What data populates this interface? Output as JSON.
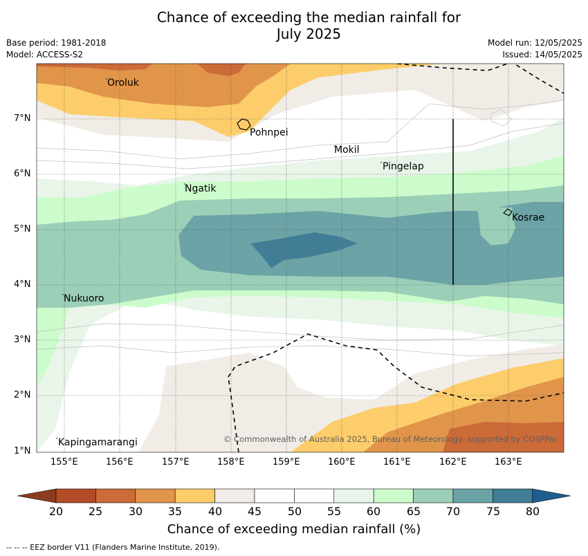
{
  "header": {
    "title_line1": "Chance of exceeding the median rainfall for",
    "title_line2": "July 2025",
    "base_period": "Base period: 1981-2018",
    "model": "Model: ACCESS-S2",
    "model_run": "Model run: 12/05/2025",
    "issued": "Issued: 14/05/2025"
  },
  "map": {
    "lat_labels": [
      "7°N",
      "6°N",
      "5°N",
      "4°N",
      "3°N",
      "2°N",
      "1°N"
    ],
    "lon_labels": [
      "155°E",
      "156°E",
      "157°E",
      "158°E",
      "159°E",
      "160°E",
      "161°E",
      "162°E",
      "163°E"
    ],
    "places": [
      "Oroluk",
      "Pohnpei",
      "Mokil",
      "Pingelap",
      "Ngatik",
      "Kosrae",
      "Nukuoro",
      "Kapingamarangi"
    ],
    "copyright": "© Commonwealth of Australia 2025, Bureau of Meteorology, supported by COSPPac"
  },
  "colorbar": {
    "title": "Chance of exceeding median rainfall (%)",
    "ticks": [
      "20",
      "25",
      "30",
      "35",
      "40",
      "45",
      "50",
      "55",
      "60",
      "65",
      "70",
      "75",
      "80"
    ],
    "colors": [
      "#b24c26",
      "#cc6a38",
      "#e0954a",
      "#fdcd6b",
      "#f1ece6",
      "#ffffff",
      "#ffffff",
      "#eaf5ea",
      "#ccfccb",
      "#9ccfb8",
      "#6ba3a6",
      "#417e96"
    ],
    "under_color": "#8c3b1e",
    "over_color": "#1d5e8f"
  },
  "footnote": "--  --  -- EEZ border V11 (Flanders Marine Institute, 2019)."
}
